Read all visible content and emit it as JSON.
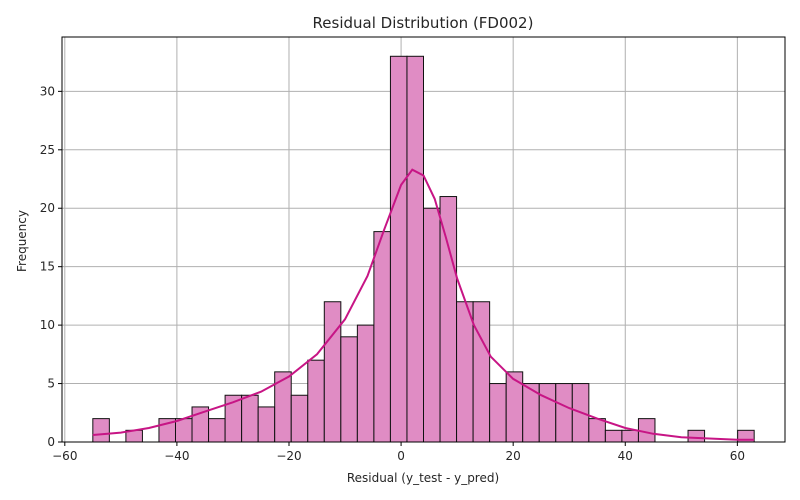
{
  "chart_data": {
    "type": "bar",
    "title": "Residual Distribution (FD002)",
    "xlabel": "Residual (y_test - y_pred)",
    "ylabel": "Frequency",
    "xlim": [
      -60.5,
      68.5
    ],
    "ylim": [
      0,
      34.65
    ],
    "xticks": [
      -60,
      -40,
      -20,
      0,
      20,
      40,
      60
    ],
    "yticks": [
      0,
      5,
      10,
      15,
      20,
      25,
      30
    ],
    "grid": true,
    "bin_width": 2.95,
    "bins": [
      {
        "x0": -55.0,
        "count": 2
      },
      {
        "x0": -52.05,
        "count": 0
      },
      {
        "x0": -49.1,
        "count": 1
      },
      {
        "x0": -46.15,
        "count": 0
      },
      {
        "x0": -43.2,
        "count": 2
      },
      {
        "x0": -40.25,
        "count": 2
      },
      {
        "x0": -37.3,
        "count": 3
      },
      {
        "x0": -34.35,
        "count": 2
      },
      {
        "x0": -31.4,
        "count": 4
      },
      {
        "x0": -28.45,
        "count": 4
      },
      {
        "x0": -25.5,
        "count": 3
      },
      {
        "x0": -22.55,
        "count": 6
      },
      {
        "x0": -19.6,
        "count": 4
      },
      {
        "x0": -16.65,
        "count": 7
      },
      {
        "x0": -13.7,
        "count": 12
      },
      {
        "x0": -10.75,
        "count": 9
      },
      {
        "x0": -7.8,
        "count": 10
      },
      {
        "x0": -4.85,
        "count": 18
      },
      {
        "x0": -1.9,
        "count": 33
      },
      {
        "x0": 1.05,
        "count": 33
      },
      {
        "x0": 4.0,
        "count": 20
      },
      {
        "x0": 6.95,
        "count": 21
      },
      {
        "x0": 9.9,
        "count": 12
      },
      {
        "x0": 12.85,
        "count": 12
      },
      {
        "x0": 15.8,
        "count": 5
      },
      {
        "x0": 18.75,
        "count": 6
      },
      {
        "x0": 21.7,
        "count": 5
      },
      {
        "x0": 24.65,
        "count": 5
      },
      {
        "x0": 27.6,
        "count": 5
      },
      {
        "x0": 30.55,
        "count": 5
      },
      {
        "x0": 33.5,
        "count": 2
      },
      {
        "x0": 36.45,
        "count": 1
      },
      {
        "x0": 39.4,
        "count": 1
      },
      {
        "x0": 42.35,
        "count": 2
      },
      {
        "x0": 45.3,
        "count": 0
      },
      {
        "x0": 48.25,
        "count": 0
      },
      {
        "x0": 51.2,
        "count": 1
      },
      {
        "x0": 54.15,
        "count": 0
      },
      {
        "x0": 57.1,
        "count": 0
      },
      {
        "x0": 60.05,
        "count": 1
      }
    ],
    "kde": {
      "x": [
        -55,
        -50,
        -45,
        -40,
        -35,
        -30,
        -25,
        -20,
        -15,
        -10,
        -6,
        -3,
        0,
        2,
        4,
        6,
        8,
        10,
        13,
        16,
        20,
        25,
        30,
        35,
        40,
        45,
        50,
        55,
        60,
        63
      ],
      "y": [
        0.6,
        0.8,
        1.2,
        1.8,
        2.6,
        3.4,
        4.3,
        5.6,
        7.5,
        10.5,
        14.2,
        18.2,
        22.0,
        23.3,
        22.8,
        20.8,
        17.5,
        14.0,
        10.0,
        7.3,
        5.4,
        4.0,
        2.9,
        2.0,
        1.2,
        0.7,
        0.4,
        0.3,
        0.2,
        0.2
      ]
    },
    "colors": {
      "bar_fill": "#e08cc4",
      "bar_edge": "#111111",
      "kde_line": "#c71585",
      "grid": "#b0b0b0"
    }
  }
}
